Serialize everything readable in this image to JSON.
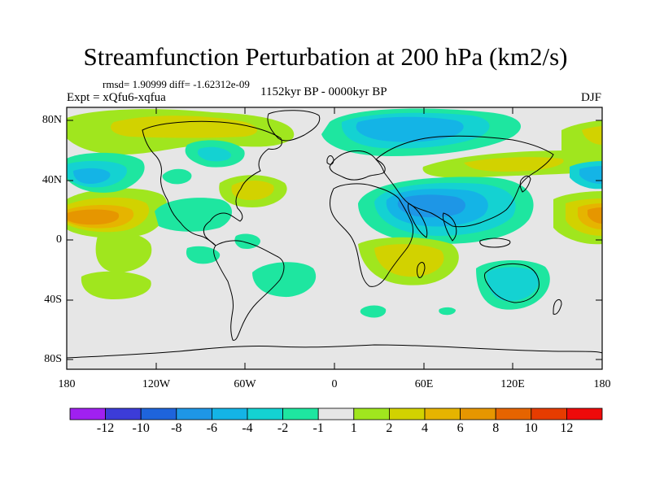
{
  "title": "Streamfunction Perturbation at 200 hPa (km2/s)",
  "stats": "rmsd= 1.90999 diff= -1.62312e-09",
  "experiment": "Expt = xQfu6-xqfua",
  "period": "1152kyr BP - 0000kyr BP",
  "season": "DJF",
  "colors": {
    "land_outline": "#000000",
    "neutral": "#e6e6e6"
  },
  "axes": {
    "lat_ticks": [
      "80N",
      "40N",
      "0",
      "40S",
      "80S"
    ],
    "lon_ticks": [
      "180",
      "120W",
      "60W",
      "0",
      "60E",
      "120E",
      "180"
    ]
  },
  "colorbar": {
    "labels": [
      "-12",
      "-10",
      "-8",
      "-6",
      "-4",
      "-2",
      "-1",
      "1",
      "2",
      "4",
      "6",
      "8",
      "10",
      "12"
    ],
    "colors": [
      "#a020f0",
      "#3c3cd8",
      "#1e64dc",
      "#1e96e6",
      "#14b4e6",
      "#14d2d2",
      "#1ee6a0",
      "#e6e6e6",
      "#a0e61e",
      "#d2d200",
      "#e6b400",
      "#e69600",
      "#e66400",
      "#e63c00",
      "#ee0a0a"
    ]
  }
}
